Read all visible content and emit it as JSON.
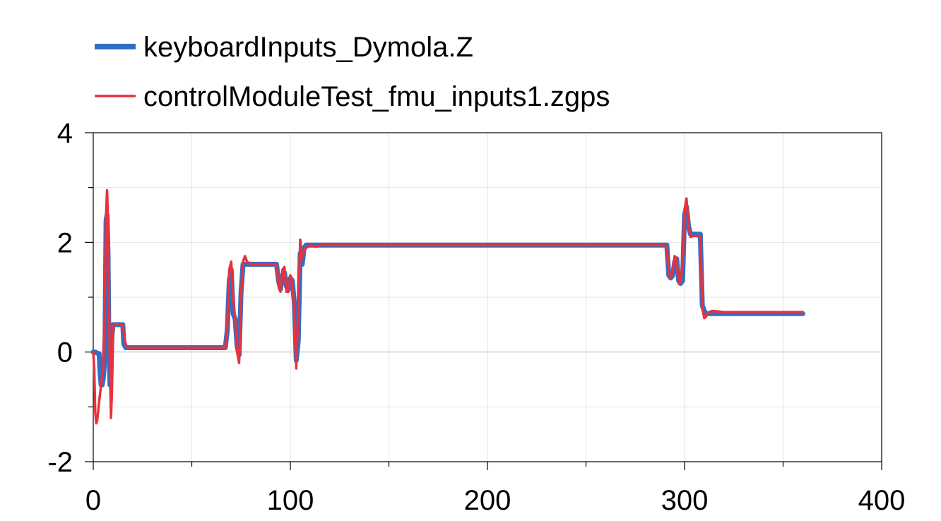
{
  "chart_data": {
    "type": "line",
    "title": "",
    "xlabel": "",
    "ylabel": "",
    "xlim": [
      0,
      400
    ],
    "ylim": [
      -2,
      4
    ],
    "x_ticks": [
      0,
      100,
      200,
      300,
      400
    ],
    "x_tick_labels": [
      "0",
      "100",
      "200",
      "300",
      "400"
    ],
    "x_minor_ticks": [
      50,
      150,
      250,
      350
    ],
    "y_ticks": [
      -2,
      0,
      2,
      4
    ],
    "y_tick_labels": [
      "-2",
      "0",
      "2",
      "4"
    ],
    "y_minor_ticks": [
      -1,
      1,
      3
    ],
    "grid": true,
    "legend_position": "top-left, above plot",
    "series": [
      {
        "name": "keyboardInputs_Dymola.Z",
        "color": "#2f6fc8",
        "style": "thick",
        "points": [
          [
            0,
            0.0
          ],
          [
            1,
            0.0
          ],
          [
            2,
            -0.02
          ],
          [
            3,
            -0.03
          ],
          [
            3.5,
            -0.4
          ],
          [
            4,
            -0.6
          ],
          [
            4.5,
            -0.6
          ],
          [
            5,
            -0.5
          ],
          [
            5.5,
            -0.3
          ],
          [
            6,
            0.3
          ],
          [
            6.5,
            2.4
          ],
          [
            7,
            2.5
          ],
          [
            7.5,
            1.8
          ],
          [
            8,
            0.0
          ],
          [
            8.5,
            -0.6
          ],
          [
            9,
            -0.4
          ],
          [
            9.5,
            0.3
          ],
          [
            10,
            0.5
          ],
          [
            12,
            0.5
          ],
          [
            15,
            0.5
          ],
          [
            15.5,
            0.15
          ],
          [
            16.5,
            0.08
          ],
          [
            20,
            0.08
          ],
          [
            40,
            0.08
          ],
          [
            67,
            0.08
          ],
          [
            68,
            0.4
          ],
          [
            69,
            1.3
          ],
          [
            70,
            1.5
          ],
          [
            71,
            0.7
          ],
          [
            72,
            0.6
          ],
          [
            73,
            0.1
          ],
          [
            74,
            -0.05
          ],
          [
            75,
            1.1
          ],
          [
            76,
            1.6
          ],
          [
            80,
            1.6
          ],
          [
            93,
            1.6
          ],
          [
            94,
            1.3
          ],
          [
            95,
            1.15
          ],
          [
            96,
            1.4
          ],
          [
            97,
            1.45
          ],
          [
            98,
            1.2
          ],
          [
            99,
            1.15
          ],
          [
            100,
            1.35
          ],
          [
            101,
            1.3
          ],
          [
            102,
            0.9
          ],
          [
            103,
            -0.15
          ],
          [
            104,
            0.2
          ],
          [
            105,
            1.8
          ],
          [
            106,
            1.6
          ],
          [
            107,
            1.9
          ],
          [
            108,
            1.95
          ],
          [
            120,
            1.95
          ],
          [
            200,
            1.95
          ],
          [
            290,
            1.95
          ],
          [
            291,
            1.95
          ],
          [
            292,
            1.4
          ],
          [
            293,
            1.35
          ],
          [
            294,
            1.4
          ],
          [
            295,
            1.65
          ],
          [
            296,
            1.7
          ],
          [
            297,
            1.3
          ],
          [
            298,
            1.25
          ],
          [
            299,
            1.3
          ],
          [
            300,
            2.5
          ],
          [
            301,
            2.65
          ],
          [
            302,
            2.3
          ],
          [
            303,
            2.15
          ],
          [
            306,
            2.15
          ],
          [
            308,
            2.15
          ],
          [
            309,
            0.85
          ],
          [
            310,
            0.75
          ],
          [
            311,
            0.7
          ],
          [
            312,
            0.7
          ],
          [
            320,
            0.7
          ],
          [
            360,
            0.7
          ]
        ]
      },
      {
        "name": "controlModuleTest_fmu_inputs1.zgps",
        "color": "#e8323c",
        "style": "thin",
        "points": [
          [
            0,
            0.0
          ],
          [
            0.5,
            -0.3
          ],
          [
            1,
            -1.1
          ],
          [
            1.5,
            -1.3
          ],
          [
            2,
            -1.25
          ],
          [
            3,
            -0.9
          ],
          [
            4,
            -0.6
          ],
          [
            5,
            -0.3
          ],
          [
            5.5,
            0.4
          ],
          [
            6,
            1.3
          ],
          [
            6.5,
            2.5
          ],
          [
            7,
            2.95
          ],
          [
            7.5,
            2.4
          ],
          [
            8,
            0.9
          ],
          [
            8.5,
            -0.4
          ],
          [
            9,
            -1.2
          ],
          [
            9.5,
            -0.7
          ],
          [
            10,
            0.4
          ],
          [
            10.5,
            0.5
          ],
          [
            12,
            0.5
          ],
          [
            15,
            0.5
          ],
          [
            16,
            0.2
          ],
          [
            17,
            0.1
          ],
          [
            18,
            0.08
          ],
          [
            20,
            0.08
          ],
          [
            40,
            0.08
          ],
          [
            67,
            0.08
          ],
          [
            68,
            0.5
          ],
          [
            69,
            1.5
          ],
          [
            70,
            1.65
          ],
          [
            71,
            1.0
          ],
          [
            72,
            0.6
          ],
          [
            73,
            0.0
          ],
          [
            74,
            -0.2
          ],
          [
            75,
            1.0
          ],
          [
            76,
            1.65
          ],
          [
            77,
            1.75
          ],
          [
            78,
            1.65
          ],
          [
            80,
            1.6
          ],
          [
            93,
            1.6
          ],
          [
            94,
            1.2
          ],
          [
            95,
            1.1
          ],
          [
            96,
            1.5
          ],
          [
            97,
            1.55
          ],
          [
            98,
            1.1
          ],
          [
            99,
            1.1
          ],
          [
            100,
            1.4
          ],
          [
            101,
            1.3
          ],
          [
            102,
            0.7
          ],
          [
            103,
            -0.3
          ],
          [
            104,
            0.8
          ],
          [
            105,
            2.05
          ],
          [
            106,
            1.7
          ],
          [
            107,
            1.85
          ],
          [
            108,
            1.9
          ],
          [
            110,
            1.95
          ],
          [
            113,
            1.92
          ],
          [
            117,
            1.97
          ],
          [
            120,
            1.95
          ],
          [
            200,
            1.95
          ],
          [
            290,
            1.95
          ],
          [
            291,
            1.9
          ],
          [
            292,
            1.45
          ],
          [
            293,
            1.35
          ],
          [
            294,
            1.5
          ],
          [
            295,
            1.75
          ],
          [
            296,
            1.7
          ],
          [
            297,
            1.25
          ],
          [
            298,
            1.3
          ],
          [
            299,
            1.6
          ],
          [
            300,
            2.6
          ],
          [
            301,
            2.8
          ],
          [
            302,
            2.3
          ],
          [
            303,
            2.1
          ],
          [
            305,
            2.12
          ],
          [
            308,
            2.1
          ],
          [
            309,
            0.8
          ],
          [
            310,
            0.62
          ],
          [
            311,
            0.65
          ],
          [
            312,
            0.72
          ],
          [
            314,
            0.75
          ],
          [
            320,
            0.73
          ],
          [
            360,
            0.73
          ]
        ]
      }
    ]
  }
}
